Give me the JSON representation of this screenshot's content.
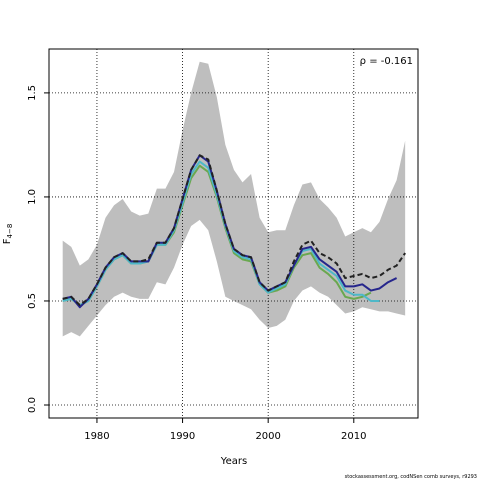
{
  "chart_data": {
    "type": "line",
    "x_label": "Years",
    "y_label": "F",
    "y_label_sub": "4−8",
    "annotation": "ρ = -0.161",
    "footer": "stockassessment.org, codNSen comb surveys, r9293",
    "x": [
      1976,
      1977,
      1978,
      1979,
      1980,
      1981,
      1982,
      1983,
      1984,
      1985,
      1986,
      1987,
      1988,
      1989,
      1990,
      1991,
      1992,
      1993,
      1994,
      1995,
      1996,
      1997,
      1998,
      1999,
      2000,
      2001,
      2002,
      2003,
      2004,
      2005,
      2006,
      2007,
      2008,
      2009,
      2010,
      2011,
      2012,
      2013,
      2014,
      2015,
      2016
    ],
    "band": {
      "color": "#bebebe",
      "upper": [
        0.79,
        0.76,
        0.67,
        0.7,
        0.77,
        0.9,
        0.96,
        0.99,
        0.93,
        0.91,
        0.92,
        1.04,
        1.04,
        1.12,
        1.32,
        1.5,
        1.65,
        1.64,
        1.48,
        1.25,
        1.13,
        1.07,
        1.11,
        0.9,
        0.83,
        0.84,
        0.84,
        0.96,
        1.06,
        1.07,
        0.99,
        0.95,
        0.9,
        0.81,
        0.83,
        0.85,
        0.83,
        0.88,
        0.99,
        1.08,
        1.27
      ],
      "lower": [
        0.33,
        0.35,
        0.33,
        0.38,
        0.43,
        0.48,
        0.52,
        0.54,
        0.52,
        0.51,
        0.51,
        0.59,
        0.58,
        0.66,
        0.77,
        0.86,
        0.89,
        0.84,
        0.69,
        0.52,
        0.5,
        0.48,
        0.46,
        0.41,
        0.37,
        0.38,
        0.41,
        0.5,
        0.55,
        0.57,
        0.54,
        0.52,
        0.48,
        0.44,
        0.45,
        0.47,
        0.46,
        0.45,
        0.45,
        0.44,
        0.43
      ]
    },
    "series": [
      {
        "color": "#6aa84f",
        "dashed": false,
        "values": [
          0.5,
          0.51,
          0.48,
          0.5,
          0.57,
          0.65,
          0.7,
          0.72,
          0.68,
          0.68,
          0.69,
          0.77,
          0.77,
          0.83,
          0.96,
          1.09,
          1.15,
          1.12,
          1.0,
          0.85,
          0.73,
          0.7,
          0.69,
          0.58,
          0.54,
          0.55,
          0.57,
          0.66,
          0.72,
          0.73,
          0.66,
          0.63,
          0.59,
          0.52,
          0.51,
          0.52,
          0.54,
          null,
          null,
          null,
          null
        ]
      },
      {
        "color": "#4db8c8",
        "dashed": false,
        "values": [
          0.5,
          0.51,
          0.48,
          0.5,
          0.57,
          0.65,
          0.7,
          0.72,
          0.68,
          0.68,
          0.69,
          0.77,
          0.77,
          0.84,
          0.97,
          1.11,
          1.17,
          1.14,
          1.01,
          0.86,
          0.74,
          0.71,
          0.7,
          0.58,
          0.54,
          0.56,
          0.58,
          0.67,
          0.74,
          0.75,
          0.68,
          0.65,
          0.62,
          0.55,
          0.53,
          0.53,
          0.5,
          0.5,
          null,
          null,
          null
        ]
      },
      {
        "color": "#26268c",
        "dashed": false,
        "values": [
          0.51,
          0.52,
          0.47,
          0.51,
          0.58,
          0.66,
          0.71,
          0.73,
          0.69,
          0.69,
          0.69,
          0.78,
          0.78,
          0.85,
          0.99,
          1.13,
          1.2,
          1.17,
          1.03,
          0.87,
          0.75,
          0.72,
          0.71,
          0.59,
          0.55,
          0.57,
          0.59,
          0.67,
          0.75,
          0.76,
          0.7,
          0.67,
          0.64,
          0.57,
          0.57,
          0.58,
          0.55,
          0.56,
          0.59,
          0.61,
          null
        ]
      },
      {
        "color": "#222222",
        "dashed": true,
        "values": [
          0.51,
          0.52,
          0.48,
          0.51,
          0.58,
          0.66,
          0.71,
          0.73,
          0.69,
          0.69,
          0.7,
          0.78,
          0.78,
          0.85,
          0.99,
          1.13,
          1.2,
          1.18,
          1.03,
          0.87,
          0.75,
          0.72,
          0.71,
          0.59,
          0.55,
          0.57,
          0.59,
          0.69,
          0.77,
          0.79,
          0.73,
          0.71,
          0.68,
          0.61,
          0.62,
          0.63,
          0.61,
          0.62,
          0.65,
          0.67,
          0.73
        ]
      }
    ],
    "xlim": [
      1974.4,
      2017.5
    ],
    "ylim": [
      -0.0625,
      1.711
    ],
    "xticks": [
      1980,
      1990,
      2000,
      2010
    ],
    "yticks": [
      {
        "value": 0,
        "label": "0.0"
      },
      {
        "value": 0.5,
        "label": "0.5"
      },
      {
        "value": 1,
        "label": "1.0"
      },
      {
        "value": 1.5,
        "label": "1.5"
      }
    ],
    "grid": true
  }
}
